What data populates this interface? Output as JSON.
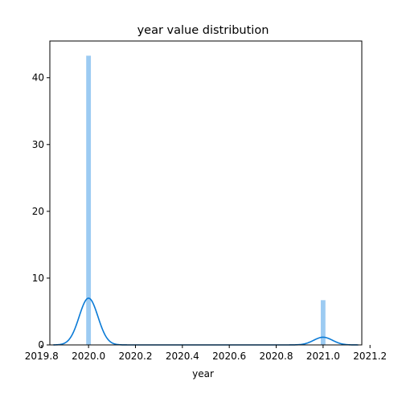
{
  "chart_data": {
    "type": "histogram",
    "title": "year value distribution",
    "xlabel": "year",
    "ylabel": "",
    "xlim": [
      2019.835,
      2021.165
    ],
    "ylim": [
      0,
      45.5
    ],
    "xticks": [
      2019.8,
      2020.0,
      2020.2,
      2020.4,
      2020.6,
      2020.8,
      2021.0,
      2021.2
    ],
    "xtick_labels": [
      "2019.8",
      "2020.0",
      "2020.2",
      "2020.4",
      "2020.6",
      "2020.8",
      "2021.0",
      "2021.2"
    ],
    "yticks": [
      0,
      10,
      20,
      30,
      40
    ],
    "ytick_labels": [
      "0",
      "10",
      "20",
      "30",
      "40"
    ],
    "grid": false,
    "bars": [
      {
        "x0": 2019.99,
        "x1": 2020.01,
        "value": 43.3
      },
      {
        "x0": 2020.99,
        "x1": 2021.01,
        "value": 6.7
      }
    ],
    "kde": {
      "x_min": 2019.85,
      "x_max": 2021.15,
      "components": [
        {
          "center": 2020.0,
          "sd": 0.04,
          "peak": 7.0
        },
        {
          "center": 2021.0,
          "sd": 0.04,
          "peak": 1.15
        }
      ]
    },
    "colors": {
      "bar": "#9ccbf2",
      "line": "#0a7ad6",
      "axes": "#000000"
    }
  }
}
